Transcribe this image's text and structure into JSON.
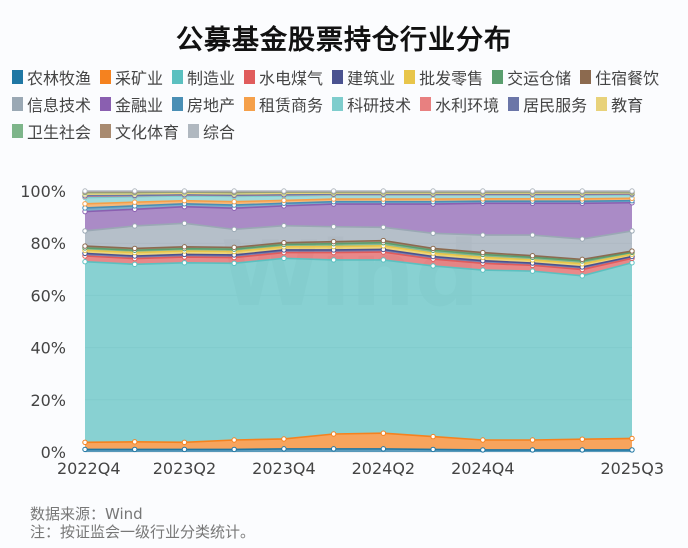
{
  "chart_data": {
    "type": "area",
    "stacked": true,
    "title": "公募基金股票持仓行业分布",
    "x": [
      "2022Q4",
      "2023Q1",
      "2023Q2",
      "2023Q3",
      "2023Q4",
      "2024Q1",
      "2024Q2",
      "2024Q3",
      "2024Q4",
      "2025Q1",
      "2025Q2",
      "2025Q3"
    ],
    "x_tick_labels": [
      "2022Q4",
      "2023Q2",
      "2023Q4",
      "2024Q2",
      "2024Q4",
      "2025Q3"
    ],
    "y_tick_labels": [
      "0%",
      "20%",
      "40%",
      "60%",
      "80%",
      "100%"
    ],
    "ylim": [
      0,
      100
    ],
    "grid": true,
    "legend_position": "top",
    "series": [
      {
        "name": "农林牧渔",
        "color": "#1f77a4",
        "values": [
          1.0,
          1.0,
          1.0,
          1.0,
          1.2,
          1.2,
          1.2,
          1.0,
          0.8,
          0.8,
          0.8,
          0.8
        ]
      },
      {
        "name": "采矿业",
        "color": "#f5821f",
        "values": [
          2.7,
          2.9,
          2.7,
          3.6,
          3.8,
          5.7,
          6.0,
          4.9,
          3.8,
          3.8,
          4.1,
          4.4
        ]
      },
      {
        "name": "制造业",
        "color": "#5bc0c0",
        "values": [
          69.2,
          68.0,
          68.8,
          67.7,
          69.2,
          66.7,
          66.4,
          65.4,
          65.1,
          64.7,
          62.6,
          67.3
        ]
      },
      {
        "name": "水电煤气",
        "color": "#e05c5c",
        "values": [
          2.2,
          2.2,
          2.2,
          2.2,
          2.2,
          2.8,
          3.0,
          2.6,
          2.6,
          2.2,
          2.4,
          1.7
        ]
      },
      {
        "name": "建筑业",
        "color": "#4a5290",
        "values": [
          1.0,
          1.0,
          1.0,
          1.0,
          1.0,
          1.0,
          1.0,
          1.0,
          1.0,
          0.9,
          1.0,
          0.7
        ]
      },
      {
        "name": "批发零售",
        "color": "#e8c54a",
        "values": [
          1.2,
          1.3,
          1.3,
          1.3,
          1.2,
          1.3,
          1.4,
          1.3,
          1.3,
          1.2,
          1.2,
          0.9
        ]
      },
      {
        "name": "交运仓储",
        "color": "#5a9e6e",
        "values": [
          0.9,
          0.9,
          0.9,
          0.9,
          0.9,
          1.1,
          1.2,
          1.1,
          1.1,
          1.0,
          1.1,
          0.7
        ]
      },
      {
        "name": "住宿餐饮",
        "color": "#8c6a4f",
        "values": [
          0.7,
          0.7,
          0.7,
          0.7,
          0.7,
          0.8,
          0.8,
          0.7,
          0.7,
          0.6,
          0.6,
          0.5
        ]
      },
      {
        "name": "信息技术",
        "color": "#9aa8b4",
        "values": [
          5.8,
          8.6,
          9.0,
          6.9,
          6.5,
          5.7,
          5.1,
          5.8,
          6.7,
          7.9,
          7.8,
          7.7
        ]
      },
      {
        "name": "金融业",
        "color": "#8a5fb0",
        "values": [
          7.4,
          6.4,
          6.4,
          8.1,
          7.6,
          8.7,
          8.9,
          11.2,
          12.2,
          12.2,
          13.7,
          10.8
        ]
      },
      {
        "name": "房地产",
        "color": "#4a8fb5",
        "values": [
          1.4,
          1.3,
          1.1,
          1.2,
          1.0,
          0.9,
          0.9,
          0.9,
          0.8,
          0.8,
          0.8,
          0.8
        ]
      },
      {
        "name": "租赁商务",
        "color": "#f5a04a",
        "values": [
          1.6,
          1.4,
          1.2,
          1.3,
          1.1,
          1.0,
          1.0,
          1.0,
          0.9,
          0.9,
          0.9,
          0.9
        ]
      },
      {
        "name": "科研技术",
        "color": "#7ecdcd",
        "values": [
          2.4,
          2.1,
          1.8,
          2.0,
          1.7,
          1.5,
          1.5,
          1.5,
          1.4,
          1.4,
          1.4,
          1.3
        ]
      },
      {
        "name": "水利环境",
        "color": "#e88080",
        "values": [
          0.5,
          0.4,
          0.4,
          0.4,
          0.4,
          0.3,
          0.3,
          0.3,
          0.3,
          0.3,
          0.3,
          0.3
        ]
      },
      {
        "name": "居民服务",
        "color": "#6b76a8",
        "values": [
          0.2,
          0.1,
          0.1,
          0.1,
          0.1,
          0.1,
          0.1,
          0.1,
          0.1,
          0.1,
          0.1,
          0.1
        ]
      },
      {
        "name": "教育",
        "color": "#e8d27a",
        "values": [
          0.6,
          0.6,
          0.5,
          0.5,
          0.5,
          0.4,
          0.4,
          0.4,
          0.4,
          0.4,
          0.4,
          0.4
        ]
      },
      {
        "name": "卫生社会",
        "color": "#7db58a",
        "values": [
          0.6,
          0.5,
          0.5,
          0.5,
          0.5,
          0.4,
          0.4,
          0.4,
          0.4,
          0.4,
          0.4,
          0.3
        ]
      },
      {
        "name": "文化体育",
        "color": "#a88a70",
        "values": [
          0.3,
          0.3,
          0.2,
          0.3,
          0.2,
          0.2,
          0.2,
          0.2,
          0.2,
          0.2,
          0.2,
          0.2
        ]
      },
      {
        "name": "综合",
        "color": "#b0b8c0",
        "values": [
          0.3,
          0.3,
          0.2,
          0.3,
          0.2,
          0.2,
          0.2,
          0.2,
          0.2,
          0.2,
          0.2,
          0.2
        ]
      }
    ],
    "watermark": "Wind"
  },
  "footnotes": {
    "source": "数据来源：Wind",
    "note": "注：按证监会一级行业分类统计。"
  }
}
